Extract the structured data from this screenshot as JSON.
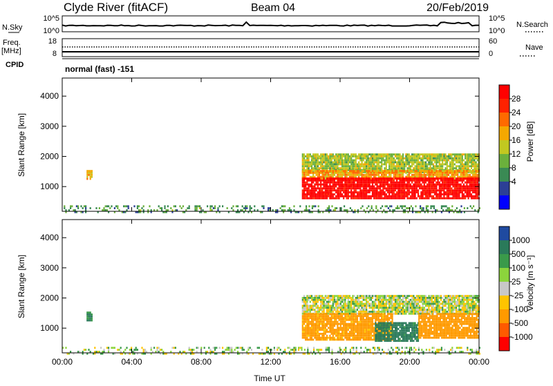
{
  "header": {
    "station": "Clyde River (fitACF)",
    "beam": "Beam 04",
    "date": "20/Feb/2019"
  },
  "noise_panel": {
    "left_label": "N.Sky",
    "right_label": "N.Search",
    "left_ticks": [
      "10^5",
      "10^0"
    ],
    "right_ticks": [
      "10^5",
      "10^0"
    ]
  },
  "freq_panel": {
    "left_label_1": "Freq.",
    "left_label_2": "[MHz]",
    "right_label": "Nave",
    "left_ticks": [
      "18",
      "8"
    ],
    "right_ticks": [
      "60",
      "0"
    ]
  },
  "cpid": {
    "label": "CPID",
    "text": "normal (fast) -151"
  },
  "colors": {
    "power_scale": [
      "#0000ff",
      "#2c3f96",
      "#3a8a54",
      "#6bb03c",
      "#c2c820",
      "#f5a800",
      "#ff6a00",
      "#ff2200",
      "#ff0000"
    ],
    "velocity_scale": [
      "#ff0000",
      "#ff5a00",
      "#ff9a00",
      "#ffc400",
      "#c8c8c8",
      "#8cd43c",
      "#3a9a4a",
      "#2a7a5a",
      "#1f4aa0"
    ]
  },
  "chart_data": [
    {
      "type": "heatmap",
      "name": "power",
      "ylabel": "Slant Range [km]",
      "xlabel": "",
      "ylim": [
        180,
        4600
      ],
      "xlim": [
        0,
        24
      ],
      "yticks": [
        "4000",
        "3000",
        "2000",
        "1000"
      ],
      "ytick_values": [
        4000,
        3000,
        2000,
        1000
      ],
      "colorbar": {
        "label": "Power [dB]",
        "ticks": [
          "28",
          "24",
          "20",
          "16",
          "12",
          "8",
          "4"
        ],
        "tick_values": [
          28,
          24,
          20,
          16,
          12,
          8,
          4
        ],
        "range": [
          0,
          31
        ]
      },
      "regions": [
        {
          "t0": 1.4,
          "t1": 1.75,
          "r0": 1250,
          "r1": 1550,
          "value": 18
        },
        {
          "t0": 0.0,
          "t1": 24.0,
          "r0": 180,
          "r1": 380,
          "value": 10
        },
        {
          "t0": 13.8,
          "t1": 24.0,
          "r0": 1500,
          "r1": 2100,
          "value": 14
        },
        {
          "t0": 13.8,
          "t1": 24.0,
          "r0": 1250,
          "r1": 1550,
          "value": 20
        },
        {
          "t0": 13.8,
          "t1": 24.0,
          "r0": 600,
          "r1": 1300,
          "value": 30
        }
      ]
    },
    {
      "type": "heatmap",
      "name": "velocity",
      "ylabel": "Slant Range [km]",
      "xlabel": "Time UT",
      "ylim": [
        180,
        4600
      ],
      "xlim": [
        0,
        24
      ],
      "yticks": [
        "4000",
        "3000",
        "2000",
        "1000"
      ],
      "ytick_values": [
        4000,
        3000,
        2000,
        1000
      ],
      "xticks": [
        "00:00",
        "04:00",
        "08:00",
        "12:00",
        "16:00",
        "20:00",
        "00:00"
      ],
      "xtick_values": [
        0,
        4,
        8,
        12,
        16,
        20,
        24
      ],
      "colorbar": {
        "label": "Velocity [m s⁻¹]",
        "ticks": [
          "1000",
          "500",
          "100",
          "25",
          "-25",
          "-100",
          "-500",
          "-1000"
        ],
        "tick_values": [
          1000,
          500,
          100,
          25,
          -25,
          -100,
          -500,
          -1000
        ]
      },
      "regions": [
        {
          "t0": 1.4,
          "t1": 1.75,
          "r0": 1250,
          "r1": 1550,
          "value": 500
        },
        {
          "t0": 0.0,
          "t1": 24.0,
          "r0": 180,
          "r1": 380,
          "value": 50
        },
        {
          "t0": 13.8,
          "t1": 24.0,
          "r0": 1500,
          "r1": 2100,
          "value": 25
        },
        {
          "t0": 13.8,
          "t1": 19.0,
          "r0": 600,
          "r1": 1500,
          "value": -200
        },
        {
          "t0": 18.0,
          "t1": 20.5,
          "r0": 600,
          "r1": 1200,
          "value": 600
        },
        {
          "t0": 20.5,
          "t1": 24.0,
          "r0": 700,
          "r1": 1500,
          "value": -300
        }
      ]
    }
  ]
}
